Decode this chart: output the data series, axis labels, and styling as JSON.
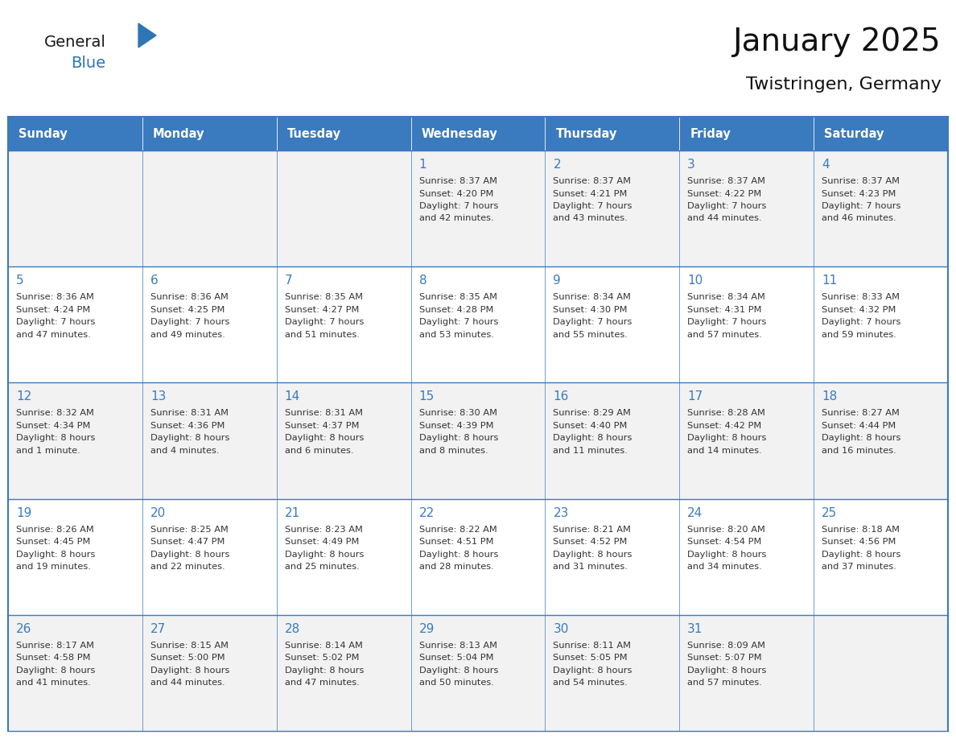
{
  "title": "January 2025",
  "subtitle": "Twistringen, Germany",
  "days_of_week": [
    "Sunday",
    "Monday",
    "Tuesday",
    "Wednesday",
    "Thursday",
    "Friday",
    "Saturday"
  ],
  "header_bg": "#3a7abf",
  "header_text": "#ffffff",
  "row_bg_odd": "#f2f2f2",
  "row_bg_even": "#ffffff",
  "border_color": "#3a7abf",
  "day_number_color": "#3a7abf",
  "text_color": "#333333",
  "logo_general_color": "#1a1a1a",
  "logo_blue_color": "#2e75b6",
  "fig_width": 11.88,
  "fig_height": 9.18,
  "calendar_data": [
    [
      {
        "day": null,
        "lines": []
      },
      {
        "day": null,
        "lines": []
      },
      {
        "day": null,
        "lines": []
      },
      {
        "day": 1,
        "lines": [
          "Sunrise: 8:37 AM",
          "Sunset: 4:20 PM",
          "Daylight: 7 hours",
          "and 42 minutes."
        ]
      },
      {
        "day": 2,
        "lines": [
          "Sunrise: 8:37 AM",
          "Sunset: 4:21 PM",
          "Daylight: 7 hours",
          "and 43 minutes."
        ]
      },
      {
        "day": 3,
        "lines": [
          "Sunrise: 8:37 AM",
          "Sunset: 4:22 PM",
          "Daylight: 7 hours",
          "and 44 minutes."
        ]
      },
      {
        "day": 4,
        "lines": [
          "Sunrise: 8:37 AM",
          "Sunset: 4:23 PM",
          "Daylight: 7 hours",
          "and 46 minutes."
        ]
      }
    ],
    [
      {
        "day": 5,
        "lines": [
          "Sunrise: 8:36 AM",
          "Sunset: 4:24 PM",
          "Daylight: 7 hours",
          "and 47 minutes."
        ]
      },
      {
        "day": 6,
        "lines": [
          "Sunrise: 8:36 AM",
          "Sunset: 4:25 PM",
          "Daylight: 7 hours",
          "and 49 minutes."
        ]
      },
      {
        "day": 7,
        "lines": [
          "Sunrise: 8:35 AM",
          "Sunset: 4:27 PM",
          "Daylight: 7 hours",
          "and 51 minutes."
        ]
      },
      {
        "day": 8,
        "lines": [
          "Sunrise: 8:35 AM",
          "Sunset: 4:28 PM",
          "Daylight: 7 hours",
          "and 53 minutes."
        ]
      },
      {
        "day": 9,
        "lines": [
          "Sunrise: 8:34 AM",
          "Sunset: 4:30 PM",
          "Daylight: 7 hours",
          "and 55 minutes."
        ]
      },
      {
        "day": 10,
        "lines": [
          "Sunrise: 8:34 AM",
          "Sunset: 4:31 PM",
          "Daylight: 7 hours",
          "and 57 minutes."
        ]
      },
      {
        "day": 11,
        "lines": [
          "Sunrise: 8:33 AM",
          "Sunset: 4:32 PM",
          "Daylight: 7 hours",
          "and 59 minutes."
        ]
      }
    ],
    [
      {
        "day": 12,
        "lines": [
          "Sunrise: 8:32 AM",
          "Sunset: 4:34 PM",
          "Daylight: 8 hours",
          "and 1 minute."
        ]
      },
      {
        "day": 13,
        "lines": [
          "Sunrise: 8:31 AM",
          "Sunset: 4:36 PM",
          "Daylight: 8 hours",
          "and 4 minutes."
        ]
      },
      {
        "day": 14,
        "lines": [
          "Sunrise: 8:31 AM",
          "Sunset: 4:37 PM",
          "Daylight: 8 hours",
          "and 6 minutes."
        ]
      },
      {
        "day": 15,
        "lines": [
          "Sunrise: 8:30 AM",
          "Sunset: 4:39 PM",
          "Daylight: 8 hours",
          "and 8 minutes."
        ]
      },
      {
        "day": 16,
        "lines": [
          "Sunrise: 8:29 AM",
          "Sunset: 4:40 PM",
          "Daylight: 8 hours",
          "and 11 minutes."
        ]
      },
      {
        "day": 17,
        "lines": [
          "Sunrise: 8:28 AM",
          "Sunset: 4:42 PM",
          "Daylight: 8 hours",
          "and 14 minutes."
        ]
      },
      {
        "day": 18,
        "lines": [
          "Sunrise: 8:27 AM",
          "Sunset: 4:44 PM",
          "Daylight: 8 hours",
          "and 16 minutes."
        ]
      }
    ],
    [
      {
        "day": 19,
        "lines": [
          "Sunrise: 8:26 AM",
          "Sunset: 4:45 PM",
          "Daylight: 8 hours",
          "and 19 minutes."
        ]
      },
      {
        "day": 20,
        "lines": [
          "Sunrise: 8:25 AM",
          "Sunset: 4:47 PM",
          "Daylight: 8 hours",
          "and 22 minutes."
        ]
      },
      {
        "day": 21,
        "lines": [
          "Sunrise: 8:23 AM",
          "Sunset: 4:49 PM",
          "Daylight: 8 hours",
          "and 25 minutes."
        ]
      },
      {
        "day": 22,
        "lines": [
          "Sunrise: 8:22 AM",
          "Sunset: 4:51 PM",
          "Daylight: 8 hours",
          "and 28 minutes."
        ]
      },
      {
        "day": 23,
        "lines": [
          "Sunrise: 8:21 AM",
          "Sunset: 4:52 PM",
          "Daylight: 8 hours",
          "and 31 minutes."
        ]
      },
      {
        "day": 24,
        "lines": [
          "Sunrise: 8:20 AM",
          "Sunset: 4:54 PM",
          "Daylight: 8 hours",
          "and 34 minutes."
        ]
      },
      {
        "day": 25,
        "lines": [
          "Sunrise: 8:18 AM",
          "Sunset: 4:56 PM",
          "Daylight: 8 hours",
          "and 37 minutes."
        ]
      }
    ],
    [
      {
        "day": 26,
        "lines": [
          "Sunrise: 8:17 AM",
          "Sunset: 4:58 PM",
          "Daylight: 8 hours",
          "and 41 minutes."
        ]
      },
      {
        "day": 27,
        "lines": [
          "Sunrise: 8:15 AM",
          "Sunset: 5:00 PM",
          "Daylight: 8 hours",
          "and 44 minutes."
        ]
      },
      {
        "day": 28,
        "lines": [
          "Sunrise: 8:14 AM",
          "Sunset: 5:02 PM",
          "Daylight: 8 hours",
          "and 47 minutes."
        ]
      },
      {
        "day": 29,
        "lines": [
          "Sunrise: 8:13 AM",
          "Sunset: 5:04 PM",
          "Daylight: 8 hours",
          "and 50 minutes."
        ]
      },
      {
        "day": 30,
        "lines": [
          "Sunrise: 8:11 AM",
          "Sunset: 5:05 PM",
          "Daylight: 8 hours",
          "and 54 minutes."
        ]
      },
      {
        "day": 31,
        "lines": [
          "Sunrise: 8:09 AM",
          "Sunset: 5:07 PM",
          "Daylight: 8 hours",
          "and 57 minutes."
        ]
      },
      {
        "day": null,
        "lines": []
      }
    ]
  ]
}
